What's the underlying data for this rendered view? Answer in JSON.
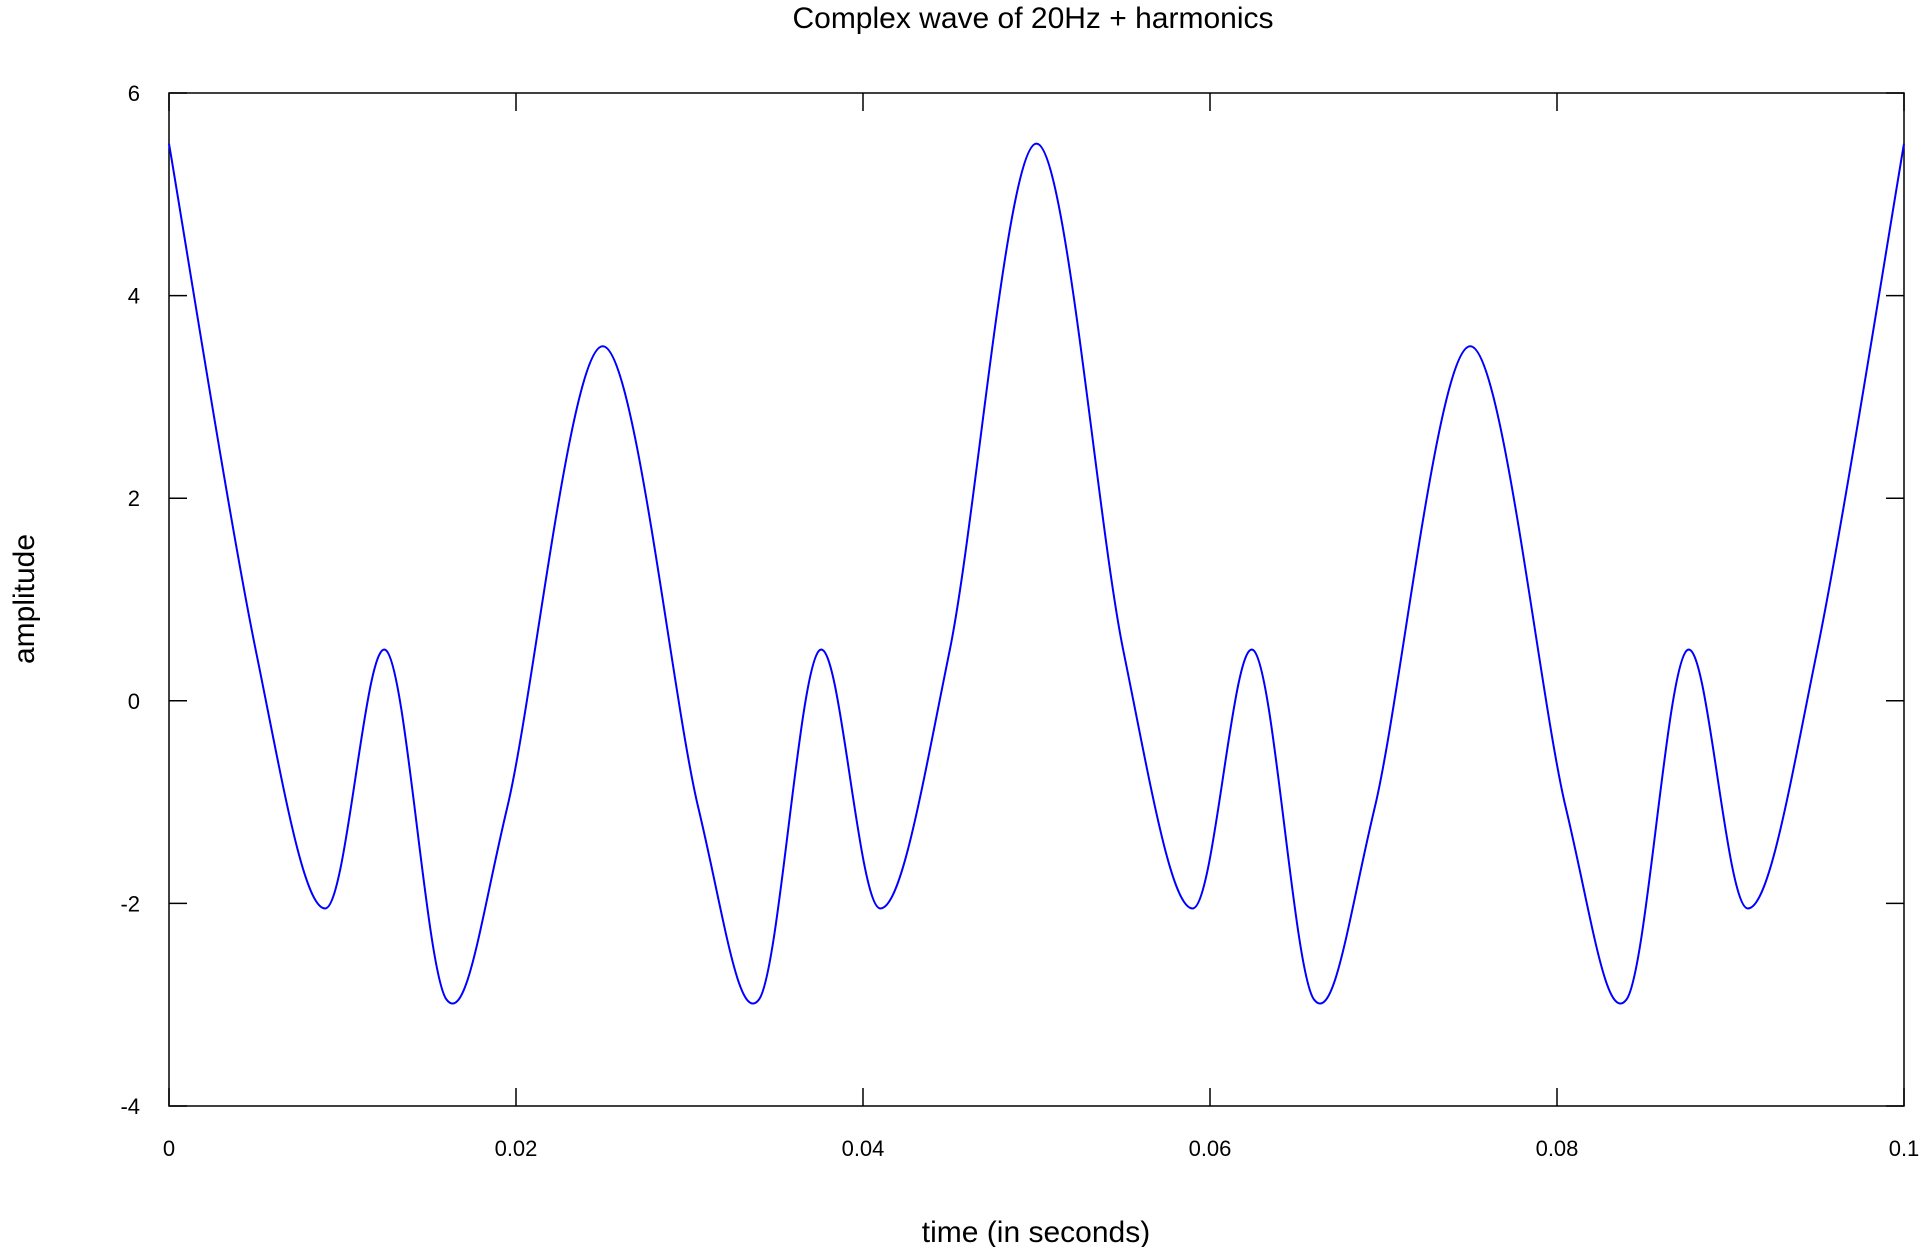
{
  "chart_data": {
    "type": "line",
    "title": "Complex wave of 20Hz + harmonics",
    "xlabel": "time (in seconds)",
    "ylabel": "amplitude",
    "xlim": [
      0,
      0.1
    ],
    "ylim": [
      -4,
      6
    ],
    "x_ticks": [
      0,
      0.02,
      0.04,
      0.06,
      0.08,
      0.1
    ],
    "x_tick_labels": [
      "0",
      "0.02",
      "0.04",
      "0.06",
      "0.08",
      "0.1"
    ],
    "y_ticks": [
      -4,
      -2,
      0,
      2,
      4,
      6
    ],
    "y_tick_labels": [
      "-4",
      "-2",
      "0",
      "2",
      "4",
      "6"
    ],
    "grid": false,
    "legend": "none",
    "series": [
      {
        "color": "#0000ff",
        "x": [
          0,
          0.005,
          0.009,
          0.0125,
          0.016,
          0.0195,
          0.025,
          0.0305,
          0.034,
          0.0375,
          0.041,
          0.045,
          0.05,
          0.055,
          0.059,
          0.0625,
          0.066,
          0.0695,
          0.075,
          0.0805,
          0.084,
          0.0875,
          0.091,
          0.095,
          0.1
        ],
        "y": [
          5.5,
          0.5,
          -2.05,
          0.5,
          -2.95,
          -1.05,
          3.5,
          -1.05,
          -2.95,
          0.5,
          -2.05,
          0.5,
          5.5,
          0.5,
          -2.05,
          0.5,
          -2.95,
          -1.05,
          3.5,
          -1.05,
          -2.95,
          0.5,
          -2.05,
          0.5,
          5.5
        ]
      }
    ]
  }
}
